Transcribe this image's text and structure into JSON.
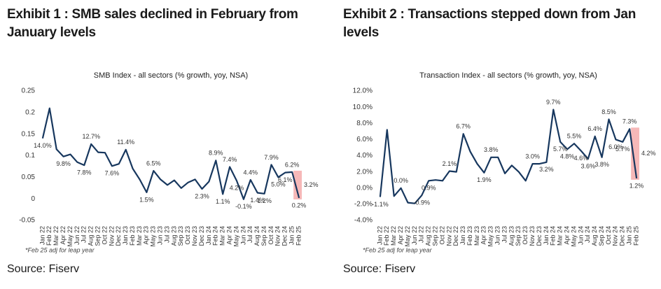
{
  "chart_data": [
    {
      "type": "line",
      "exhibit": "Exhibit 1 : SMB sales declined in February from January levels",
      "subtitle": "SMB Index - all sectors (% growth, yoy, NSA)",
      "footnote": "*Feb 25 adj for leap year",
      "source": "Source: Fiserv",
      "categories": [
        "Jan 22",
        "Feb 22",
        "Mar 22",
        "Apr 22",
        "May 22",
        "Jun 22",
        "Jul 22",
        "Aug 22",
        "Sep 22",
        "Oct 22",
        "Nov 22",
        "Dec 22",
        "Jan 23",
        "Feb 23",
        "Mar 23",
        "Apr 23",
        "May 23",
        "Jun 23",
        "Jul 23",
        "Aug 23",
        "Sep 23",
        "Oct 23",
        "Nov 23",
        "Dec 23",
        "Jan 24",
        "Feb 24",
        "Mar 24",
        "Apr 24",
        "May 24",
        "Jun 24",
        "Jul 24",
        "Aug 24",
        "Sep 24",
        "Oct 24",
        "Nov 24",
        "Dec 24",
        "Jan 25",
        "Feb 25"
      ],
      "series": [
        {
          "name": "SMB Index",
          "color": "#17375e",
          "values": [
            0.14,
            0.21,
            0.115,
            0.098,
            0.103,
            0.085,
            0.078,
            0.127,
            0.108,
            0.107,
            0.076,
            0.081,
            0.114,
            0.07,
            0.045,
            0.015,
            0.065,
            0.045,
            0.032,
            0.043,
            0.025,
            0.038,
            0.045,
            0.023,
            0.04,
            0.089,
            0.011,
            0.074,
            0.042,
            -0.001,
            0.044,
            0.014,
            0.012,
            0.079,
            0.05,
            0.061,
            0.062,
            0.002
          ],
          "value_labels": [
            "14.0%",
            null,
            null,
            "9.8%",
            null,
            null,
            "7.8%",
            "12.7%",
            null,
            null,
            "7.6%",
            null,
            "11.4%",
            null,
            null,
            "1.5%",
            "6.5%",
            null,
            null,
            null,
            null,
            null,
            null,
            "2.3%",
            null,
            "8.9%",
            "1.1%",
            "7.4%",
            "4.2%",
            "-0.1%",
            "4.4%",
            "1.4%",
            "1.2%",
            "7.9%",
            "5.0%",
            "6.1%",
            "6.2%",
            "0.2%"
          ]
        }
      ],
      "annotations": [
        {
          "text": "3.2%"
        }
      ],
      "ylim": [
        -0.05,
        0.25
      ],
      "yticks": [
        -0.05,
        0,
        0.05,
        0.1,
        0.15,
        0.2,
        0.25
      ]
    },
    {
      "type": "line",
      "exhibit": "Exhibit 2 : Transactions stepped down from Jan levels",
      "subtitle": "Transaction Index - all sectors (% growth, yoy, NSA)",
      "footnote": "*Feb 25 adj for leap year",
      "source": "Source: Fiserv",
      "categories": [
        "Jan 22",
        "Feb 22",
        "Mar 22",
        "Apr 22",
        "May 22",
        "Jun 22",
        "Jul 22",
        "Aug 22",
        "Sep 22",
        "Oct 22",
        "Nov 22",
        "Dec 22",
        "Jan 23",
        "Feb 23",
        "Mar 23",
        "Apr 23",
        "May 23",
        "Jun 23",
        "Jul 23",
        "Aug 23",
        "Sep 23",
        "Oct 23",
        "Nov 23",
        "Dec 23",
        "Jan 24",
        "Feb 24",
        "Mar 24",
        "Apr 24",
        "May 24",
        "Jun 24",
        "Jul 24",
        "Aug 24",
        "Sep 24",
        "Oct 24",
        "Nov 24",
        "Dec 24",
        "Jan 25",
        "Feb 25"
      ],
      "series": [
        {
          "name": "Transaction Index",
          "color": "#17375e",
          "values": [
            -1.1,
            7.2,
            -1.0,
            0.0,
            -1.8,
            -1.9,
            -0.9,
            0.9,
            1.0,
            0.9,
            2.1,
            2.0,
            6.7,
            4.5,
            3.0,
            1.9,
            3.8,
            3.8,
            1.8,
            2.8,
            2.0,
            0.9,
            3.0,
            3.0,
            3.2,
            9.7,
            5.7,
            4.8,
            5.5,
            4.6,
            3.6,
            6.4,
            3.8,
            8.5,
            6.0,
            5.7,
            7.3,
            1.2
          ],
          "value_labels": [
            "-1.1%",
            null,
            null,
            "0.0%",
            null,
            null,
            "-0.9%",
            "0.9%",
            null,
            null,
            "2.1%",
            null,
            "6.7%",
            null,
            null,
            "1.9%",
            "3.8%",
            null,
            null,
            null,
            null,
            null,
            "3.0%",
            null,
            "3.2%",
            "9.7%",
            "5.7%",
            "4.8%",
            "5.5%",
            "4.6%",
            "3.6%",
            "6.4%",
            "3.8%",
            "8.5%",
            "6.0%",
            "5.7%",
            "7.3%",
            "1.2%"
          ]
        }
      ],
      "annotations": [
        {
          "text": "4.2%"
        }
      ],
      "ylim": [
        -4,
        12
      ],
      "yticks": [
        {
          "value": -4,
          "label": "-4.0%"
        },
        {
          "value": -2,
          "label": "-2.0%"
        },
        {
          "value": 0,
          "label": "0.0%"
        },
        {
          "value": 2,
          "label": "2.0%"
        },
        {
          "value": 4,
          "label": "4.0%"
        },
        {
          "value": 6,
          "label": "6.0%"
        },
        {
          "value": 8,
          "label": "8.0%"
        },
        {
          "value": 10,
          "label": "10.0%"
        },
        {
          "value": 12,
          "label": "12.0%"
        }
      ]
    }
  ]
}
